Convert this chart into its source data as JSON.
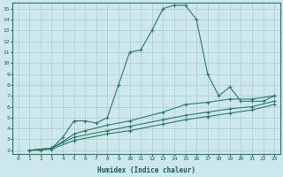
{
  "xlabel": "Humidex (Indice chaleur)",
  "bg_color": "#cce8ec",
  "grid_color": "#aacccc",
  "line_color": "#2a7a6a",
  "xlim": [
    -0.5,
    23.5
  ],
  "ylim": [
    1.7,
    15.5
  ],
  "xticks": [
    0,
    1,
    2,
    3,
    4,
    5,
    6,
    7,
    8,
    9,
    10,
    11,
    12,
    13,
    14,
    15,
    16,
    17,
    18,
    19,
    20,
    21,
    22,
    23
  ],
  "yticks": [
    2,
    3,
    4,
    5,
    6,
    7,
    8,
    9,
    10,
    11,
    12,
    13,
    14,
    15
  ],
  "line1_x": [
    1,
    2,
    3,
    4,
    5,
    6,
    7,
    8,
    9,
    10,
    11,
    12,
    13,
    14,
    15,
    16,
    17,
    18,
    19,
    20,
    21,
    22,
    23
  ],
  "line1_y": [
    2,
    2,
    2.2,
    3.2,
    4.7,
    4.7,
    4.5,
    5.0,
    8.0,
    11.0,
    11.2,
    13.0,
    15.0,
    15.3,
    15.3,
    14.0,
    9.0,
    7.0,
    7.8,
    6.5,
    6.5,
    6.5,
    7.0
  ],
  "line2_x": [
    1,
    3,
    4,
    5,
    6,
    8,
    10,
    13,
    15,
    17,
    19,
    21,
    23
  ],
  "line2_y": [
    2,
    2.2,
    2.8,
    3.5,
    3.8,
    4.3,
    4.7,
    5.5,
    6.2,
    6.4,
    6.7,
    6.7,
    7.0
  ],
  "line3_x": [
    1,
    3,
    5,
    8,
    10,
    13,
    15,
    17,
    19,
    21,
    23
  ],
  "line3_y": [
    2,
    2.2,
    3.2,
    3.8,
    4.2,
    4.8,
    5.2,
    5.5,
    5.8,
    6.0,
    6.5
  ],
  "line4_x": [
    1,
    3,
    5,
    8,
    10,
    13,
    15,
    17,
    19,
    21,
    23
  ],
  "line4_y": [
    2,
    2.1,
    2.9,
    3.5,
    3.8,
    4.4,
    4.8,
    5.1,
    5.4,
    5.7,
    6.2
  ]
}
